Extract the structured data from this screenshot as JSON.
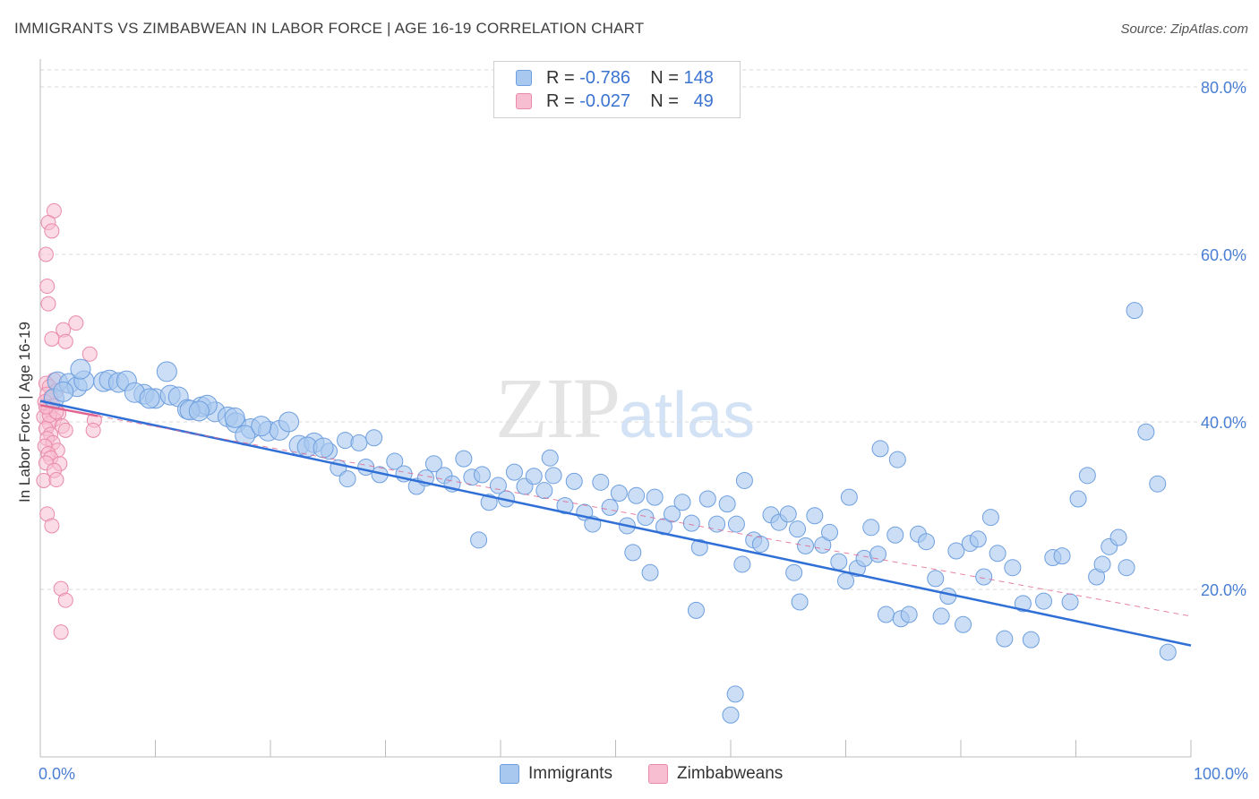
{
  "header": {
    "title": "IMMIGRANTS VS ZIMBABWEAN IN LABOR FORCE | AGE 16-19 CORRELATION CHART",
    "source": "Source: ZipAtlas.com"
  },
  "legend": {
    "row1": {
      "r_label": "R =",
      "r_value": "-0.786",
      "n_label": "N =",
      "n_value": "148"
    },
    "row2": {
      "r_label": "R =",
      "r_value": "-0.027",
      "n_label": "N =",
      "n_value": "49"
    }
  },
  "watermark": {
    "zip": "ZIP",
    "atlas": "atlas"
  },
  "bottom_legend": {
    "immigrants": "Immigrants",
    "zimbabweans": "Zimbabweans"
  },
  "colors": {
    "immigrants_fill": "#a9c8ef",
    "immigrants_stroke": "#6e9fdf",
    "immigrants_line": "#2f6fd6",
    "zimbabweans_fill": "#f7bdd0",
    "zimbabweans_stroke": "#e98aab",
    "zimbabweans_line": "#e0638f",
    "grid": "#d9d9d9",
    "tick_label": "#4a7fd4"
  },
  "chart_data": {
    "type": "scatter",
    "title": "IMMIGRANTS VS ZIMBABWEAN IN LABOR FORCE | AGE 16-19 CORRELATION CHART",
    "xlabel": "",
    "ylabel": "In Labor Force | Age 16-19",
    "xlim": [
      0,
      100
    ],
    "ylim": [
      0,
      80
    ],
    "x_tick_labels": [
      "0.0%",
      "100.0%"
    ],
    "y_ticks": [
      20,
      40,
      60,
      80
    ],
    "y_tick_labels": [
      "20.0%",
      "40.0%",
      "60.0%",
      "80.0%"
    ],
    "grid": true,
    "legend_position": "top-center",
    "series": [
      {
        "name": "Immigrants",
        "R": -0.786,
        "N": 148,
        "trend": {
          "x": [
            0,
            100
          ],
          "y": [
            42.5,
            13.3
          ]
        },
        "points": [
          [
            1.5,
            44.8
          ],
          [
            2.5,
            44.6
          ],
          [
            3.2,
            44.2
          ],
          [
            3.8,
            44.9
          ],
          [
            5.5,
            44.8
          ],
          [
            6.0,
            45.0
          ],
          [
            6.8,
            44.7
          ],
          [
            7.5,
            44.9
          ],
          [
            1.2,
            42.8
          ],
          [
            2.0,
            43.6
          ],
          [
            9.0,
            43.3
          ],
          [
            10.0,
            42.8
          ],
          [
            11.3,
            43.2
          ],
          [
            8.2,
            43.5
          ],
          [
            12.0,
            43.0
          ],
          [
            12.8,
            41.5
          ],
          [
            14.0,
            41.8
          ],
          [
            15.2,
            41.2
          ],
          [
            16.3,
            40.6
          ],
          [
            17.0,
            39.9
          ],
          [
            18.3,
            39.2
          ],
          [
            19.8,
            38.9
          ],
          [
            20.8,
            39.0
          ],
          [
            21.6,
            40.0
          ],
          [
            14.5,
            42.0
          ],
          [
            16.9,
            40.5
          ],
          [
            22.5,
            37.2
          ],
          [
            23.8,
            37.5
          ],
          [
            25.1,
            36.5
          ],
          [
            26.5,
            37.8
          ],
          [
            27.7,
            37.5
          ],
          [
            29.0,
            38.1
          ],
          [
            9.5,
            42.8
          ],
          [
            13.0,
            41.4
          ],
          [
            13.8,
            41.3
          ],
          [
            17.8,
            38.4
          ],
          [
            19.2,
            39.5
          ],
          [
            23.2,
            37.0
          ],
          [
            24.6,
            36.9
          ],
          [
            25.9,
            34.5
          ],
          [
            26.7,
            33.2
          ],
          [
            28.3,
            34.6
          ],
          [
            29.5,
            33.7
          ],
          [
            30.8,
            35.3
          ],
          [
            31.6,
            33.8
          ],
          [
            32.7,
            32.3
          ],
          [
            33.5,
            33.3
          ],
          [
            34.2,
            35.0
          ],
          [
            35.1,
            33.6
          ],
          [
            35.8,
            32.6
          ],
          [
            36.8,
            35.6
          ],
          [
            37.5,
            33.4
          ],
          [
            38.4,
            33.7
          ],
          [
            39.0,
            30.4
          ],
          [
            39.8,
            32.4
          ],
          [
            40.5,
            30.8
          ],
          [
            41.2,
            34.0
          ],
          [
            42.1,
            32.3
          ],
          [
            42.9,
            33.5
          ],
          [
            43.8,
            31.8
          ],
          [
            44.6,
            33.6
          ],
          [
            45.6,
            30.0
          ],
          [
            46.4,
            32.9
          ],
          [
            47.3,
            29.2
          ],
          [
            48.0,
            27.8
          ],
          [
            48.7,
            32.8
          ],
          [
            49.5,
            29.8
          ],
          [
            50.3,
            31.5
          ],
          [
            51.0,
            27.6
          ],
          [
            51.8,
            31.2
          ],
          [
            52.6,
            28.6
          ],
          [
            53.4,
            31.0
          ],
          [
            54.2,
            27.5
          ],
          [
            54.9,
            29.0
          ],
          [
            55.8,
            30.4
          ],
          [
            56.6,
            27.9
          ],
          [
            57.3,
            25.0
          ],
          [
            58.0,
            30.8
          ],
          [
            58.8,
            27.8
          ],
          [
            59.7,
            30.2
          ],
          [
            60.5,
            27.8
          ],
          [
            61.2,
            33.0
          ],
          [
            62.0,
            25.9
          ],
          [
            62.6,
            25.4
          ],
          [
            63.5,
            28.9
          ],
          [
            64.2,
            28.0
          ],
          [
            65.0,
            29.0
          ],
          [
            65.8,
            27.2
          ],
          [
            66.5,
            25.2
          ],
          [
            67.3,
            28.8
          ],
          [
            68.0,
            25.3
          ],
          [
            68.6,
            26.8
          ],
          [
            69.4,
            23.3
          ],
          [
            70.0,
            21.0
          ],
          [
            71.0,
            22.5
          ],
          [
            71.6,
            23.7
          ],
          [
            72.2,
            27.4
          ],
          [
            72.8,
            24.2
          ],
          [
            73.5,
            17.0
          ],
          [
            74.3,
            26.5
          ],
          [
            74.8,
            16.5
          ],
          [
            75.5,
            17.0
          ],
          [
            76.3,
            26.6
          ],
          [
            77.0,
            25.7
          ],
          [
            77.8,
            21.3
          ],
          [
            78.3,
            16.8
          ],
          [
            78.9,
            19.2
          ],
          [
            79.6,
            24.6
          ],
          [
            80.2,
            15.8
          ],
          [
            80.8,
            25.5
          ],
          [
            81.5,
            26.0
          ],
          [
            82.0,
            21.5
          ],
          [
            82.6,
            28.6
          ],
          [
            83.2,
            24.3
          ],
          [
            83.8,
            14.1
          ],
          [
            84.5,
            22.6
          ],
          [
            85.4,
            18.3
          ],
          [
            86.1,
            14.0
          ],
          [
            87.2,
            18.6
          ],
          [
            88.0,
            23.8
          ],
          [
            88.8,
            24.0
          ],
          [
            89.5,
            18.5
          ],
          [
            90.2,
            30.8
          ],
          [
            91.0,
            33.6
          ],
          [
            91.8,
            21.5
          ],
          [
            92.3,
            23.0
          ],
          [
            92.9,
            25.1
          ],
          [
            93.7,
            26.2
          ],
          [
            94.4,
            22.6
          ],
          [
            95.1,
            53.3
          ],
          [
            96.1,
            38.8
          ],
          [
            97.1,
            32.6
          ],
          [
            98.0,
            12.5
          ],
          [
            60.0,
            5.0
          ],
          [
            53.0,
            22.0
          ],
          [
            61.0,
            23.0
          ],
          [
            73.0,
            36.8
          ],
          [
            74.5,
            35.5
          ],
          [
            66.0,
            18.5
          ],
          [
            57.0,
            17.5
          ],
          [
            70.3,
            31.0
          ],
          [
            65.5,
            22.0
          ],
          [
            60.4,
            7.5
          ],
          [
            44.3,
            35.7
          ],
          [
            51.5,
            24.4
          ],
          [
            38.1,
            25.9
          ],
          [
            11.0,
            46.0
          ],
          [
            3.5,
            46.3
          ]
        ]
      },
      {
        "name": "Zimbabweans",
        "R": -0.027,
        "N": 49,
        "trend": {
          "x": [
            0,
            5
          ],
          "y": [
            42.0,
            40.7
          ]
        },
        "points": [
          [
            1.2,
            65.2
          ],
          [
            0.7,
            63.8
          ],
          [
            1.0,
            62.8
          ],
          [
            0.5,
            60.0
          ],
          [
            0.6,
            56.2
          ],
          [
            0.7,
            54.1
          ],
          [
            2.0,
            51.0
          ],
          [
            3.1,
            51.8
          ],
          [
            1.0,
            49.9
          ],
          [
            2.2,
            49.6
          ],
          [
            4.3,
            48.1
          ],
          [
            1.2,
            45.0
          ],
          [
            0.5,
            44.6
          ],
          [
            0.8,
            44.2
          ],
          [
            1.4,
            43.7
          ],
          [
            0.6,
            43.3
          ],
          [
            0.9,
            42.9
          ],
          [
            0.4,
            42.4
          ],
          [
            1.1,
            41.9
          ],
          [
            0.7,
            41.5
          ],
          [
            1.6,
            41.0
          ],
          [
            0.3,
            40.6
          ],
          [
            1.2,
            40.3
          ],
          [
            0.8,
            39.8
          ],
          [
            1.9,
            39.5
          ],
          [
            0.5,
            39.2
          ],
          [
            2.2,
            39.0
          ],
          [
            0.9,
            38.5
          ],
          [
            0.6,
            38.0
          ],
          [
            1.1,
            37.5
          ],
          [
            0.4,
            37.1
          ],
          [
            1.5,
            36.6
          ],
          [
            0.7,
            36.2
          ],
          [
            0.9,
            35.7
          ],
          [
            0.5,
            35.1
          ],
          [
            1.7,
            35.0
          ],
          [
            1.2,
            34.2
          ],
          [
            0.3,
            33.0
          ],
          [
            1.4,
            33.1
          ],
          [
            0.6,
            29.0
          ],
          [
            1.0,
            27.6
          ],
          [
            1.8,
            20.1
          ],
          [
            2.2,
            18.7
          ],
          [
            1.8,
            14.9
          ],
          [
            4.7,
            40.2
          ],
          [
            4.6,
            39.0
          ],
          [
            0.8,
            40.8
          ],
          [
            1.4,
            41.2
          ],
          [
            0.5,
            41.8
          ]
        ]
      }
    ]
  }
}
